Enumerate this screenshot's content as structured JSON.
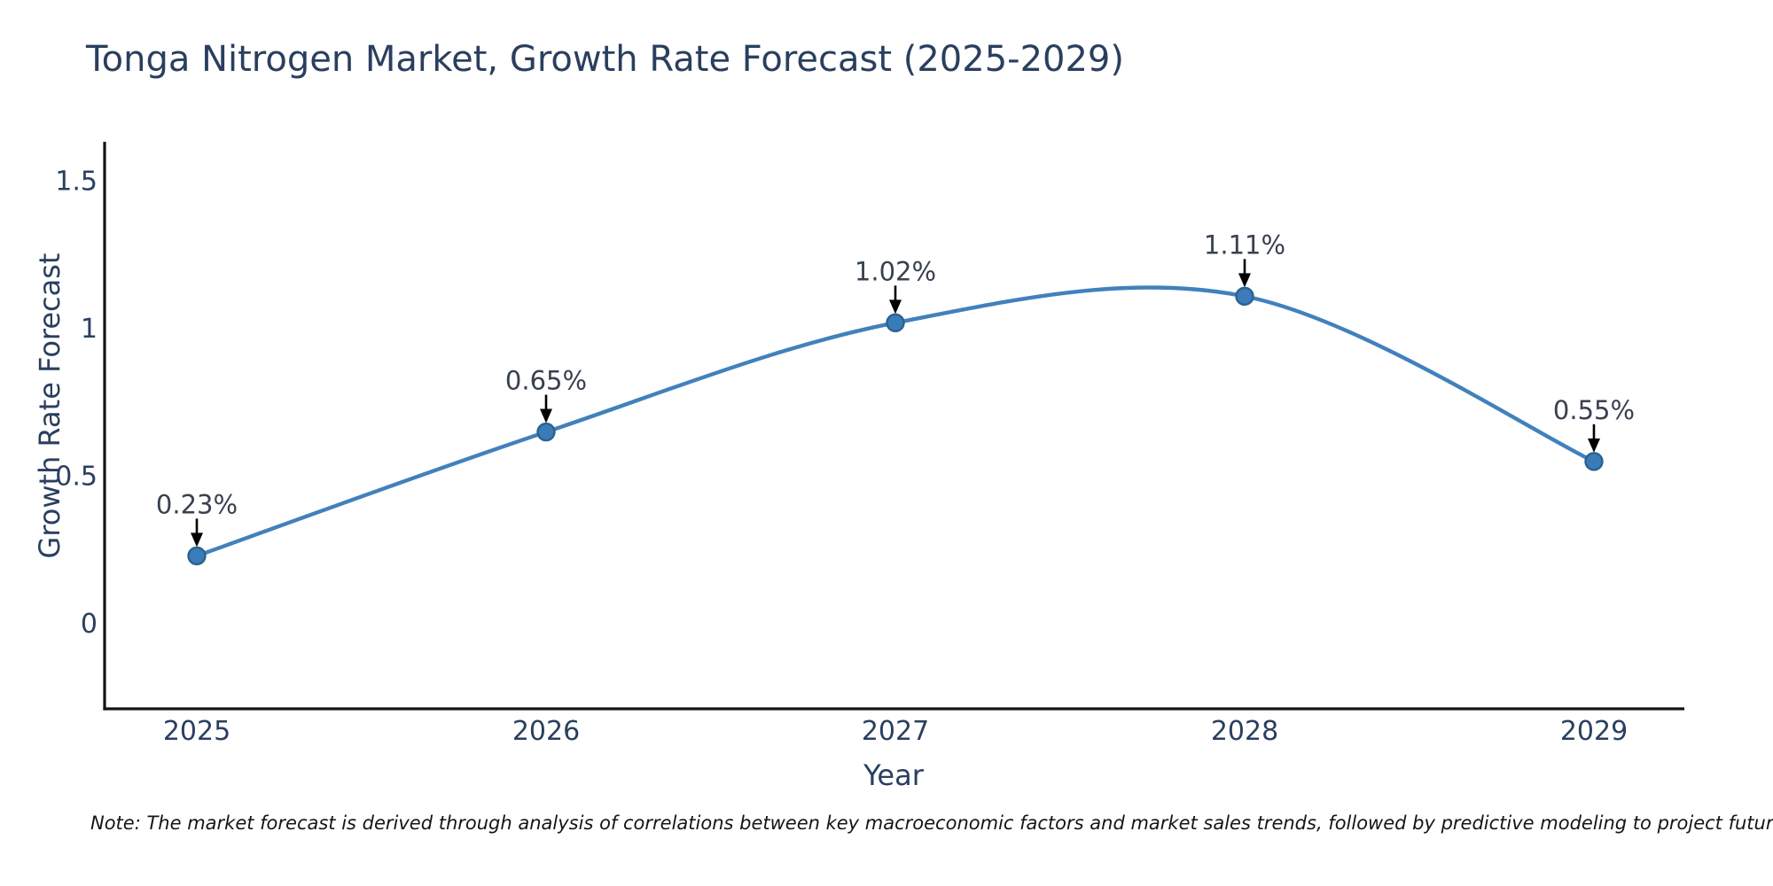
{
  "title": "Tonga Nitrogen Market, Growth Rate Forecast (2025-2029)",
  "note": "Note: The market forecast is derived through analysis of correlations between key macroeconomic factors and market sales trends, followed by predictive modeling to project future sales",
  "chart_data": {
    "type": "line",
    "title": "Tonga Nitrogen Market, Growth Rate Forecast (2025-2029)",
    "xlabel": "Year",
    "ylabel": "Growth Rate Forecast",
    "x": [
      2025,
      2026,
      2027,
      2028,
      2029
    ],
    "xtick_labels": [
      "2025",
      "2026",
      "2027",
      "2028",
      "2029"
    ],
    "series": [
      {
        "name": "Growth Rate Forecast",
        "values": [
          0.23,
          0.65,
          1.02,
          1.11,
          0.55
        ],
        "point_labels": [
          "0.23%",
          "0.65%",
          "1.02%",
          "1.11%",
          "0.55%"
        ]
      }
    ],
    "yticks": [
      0,
      0.5,
      1,
      1.5
    ],
    "ytick_labels": [
      "0",
      "0.5",
      "1",
      "1.5"
    ],
    "ylim": [
      -0.29,
      1.63
    ],
    "line_shape": "spline",
    "grid": false,
    "legend_position": "none",
    "colors": {
      "line": "#4181bc",
      "marker_fill": "#3a7cba",
      "marker_edge": "#2d618f",
      "axis_line": "#141414",
      "text": "#2a3f5f",
      "annotation_text": "#38414f",
      "arrow": "#000000",
      "note_text": "#151515",
      "background": "#ffffff"
    }
  }
}
